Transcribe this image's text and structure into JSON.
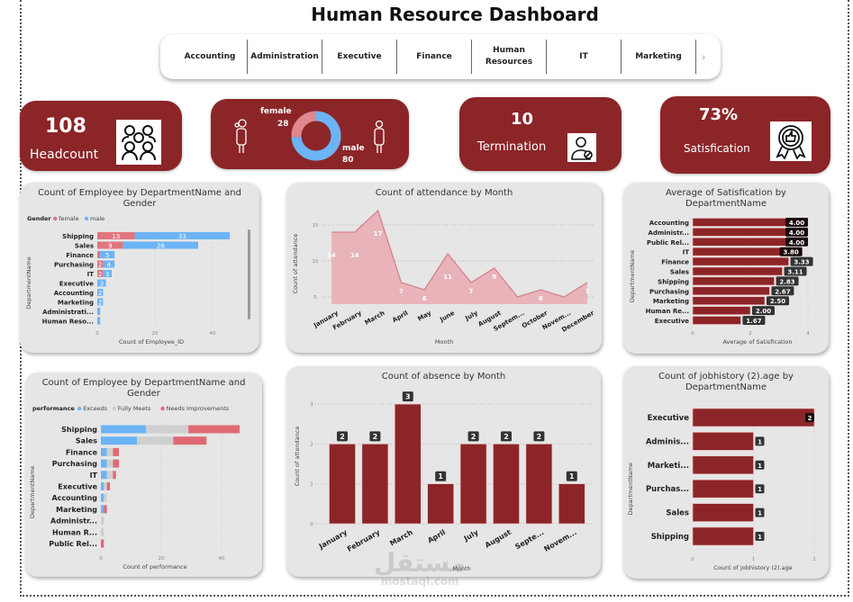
{
  "title": "Human Resource Dashboard",
  "slicer": {
    "items": [
      "Accounting",
      "Administration",
      "Executive",
      "Finance",
      "Human Resources",
      "IT",
      "Marketing"
    ],
    "next_icon": "chevron-right-icon"
  },
  "cards": {
    "headcount": {
      "value": "108",
      "label": "Headcount",
      "icon": "people-group-icon"
    },
    "gender": {
      "female_label": "female",
      "female_value": "28",
      "male_label": "male",
      "male_value": "80",
      "female_color": "#e0878f",
      "male_color": "#6cb4f6"
    },
    "termination": {
      "value": "10",
      "label": "Termination",
      "icon": "employee-remove-icon"
    },
    "satisfaction": {
      "value": "73%",
      "label": "Satisfication",
      "icon": "award-thumbs-up-icon"
    }
  },
  "colors": {
    "accent": "#8c2528",
    "female": "#e0767f",
    "male": "#6cb4f6",
    "exceeds": "#6cb4f6",
    "fully_meets": "#cfcfcf",
    "needs": "#e06a74",
    "label_bg": "#333333"
  },
  "watermark": {
    "arabic": "مستقل",
    "latin": "mostaql.com"
  },
  "chart_data": [
    {
      "id": "gender_dept",
      "type": "bar",
      "orientation": "horizontal",
      "stacked": true,
      "title": [
        "Count of Employee by DepartmentName and",
        "Gender"
      ],
      "legend_title": "Gender",
      "legend_position": "top-left",
      "categories": [
        "Shipping",
        "Sales",
        "Finance",
        "Purchasing",
        "IT",
        "Executive",
        "Accounting",
        "Marketing",
        "Administrati...",
        "Human Reso..."
      ],
      "series": [
        {
          "name": "female",
          "values": [
            13,
            9,
            1,
            2,
            2,
            0,
            0,
            0,
            0,
            0
          ]
        },
        {
          "name": "male",
          "values": [
            33,
            26,
            5,
            4,
            3,
            3,
            2,
            2,
            1,
            1
          ]
        }
      ],
      "xlabel": "Count of Employee_ID",
      "ylabel": "DepartmentName",
      "xticks": [
        0,
        20,
        40
      ],
      "xlim": [
        0,
        50
      ],
      "grid": true
    },
    {
      "id": "attendance",
      "type": "area",
      "title": "Count of attendance by Month",
      "categories": [
        "January",
        "February",
        "March",
        "April",
        "May",
        "June",
        "July",
        "August",
        "Septem...",
        "October",
        "Novem...",
        "December"
      ],
      "values": [
        14,
        14,
        17,
        7,
        6,
        11,
        7,
        9,
        5,
        6,
        5,
        7
      ],
      "data_labels": [
        "14",
        "14",
        "17",
        "7",
        "6",
        "11",
        "7",
        "9",
        "",
        "6",
        "",
        "7"
      ],
      "xlabel": "Month",
      "ylabel": "Count of attendance",
      "yticks": [
        5,
        10,
        15
      ],
      "ylim": [
        4,
        17
      ],
      "grid": true
    },
    {
      "id": "satisfaction",
      "type": "bar",
      "orientation": "horizontal",
      "title": [
        "Average of Satisfication by",
        "DepartmentName"
      ],
      "categories": [
        "Accounting",
        "Administr...",
        "Public Rel...",
        "IT",
        "Finance",
        "Sales",
        "Shipping",
        "Purchasing",
        "Marketing",
        "Human Re...",
        "Executive"
      ],
      "values": [
        4.0,
        4.0,
        4.0,
        3.8,
        3.33,
        3.11,
        2.83,
        2.67,
        2.5,
        2.0,
        1.67
      ],
      "data_labels": [
        "4.00",
        "4.00",
        "4.00",
        "3.80",
        "3.33",
        "3.11",
        "2.83",
        "2.67",
        "2.50",
        "2.00",
        "1.67"
      ],
      "xlabel": "Average of Satisfication",
      "ylabel": "DepartmentName",
      "xticks": [
        0,
        2,
        4
      ],
      "xlim": [
        0,
        4
      ]
    },
    {
      "id": "performance",
      "type": "bar",
      "orientation": "horizontal",
      "stacked": true,
      "title": [
        "Count of Employee by DepartmentName and",
        "Gender"
      ],
      "legend_title": "performance",
      "legend_position": "top-left",
      "categories": [
        "Shipping",
        "Sales",
        "Finance",
        "Purchasing",
        "IT",
        "Executive",
        "Accounting",
        "Marketing",
        "Administr...",
        "Human R...",
        "Public Rel..."
      ],
      "series": [
        {
          "name": "Exceeds",
          "values": [
            15,
            12,
            2,
            2,
            2,
            1,
            1,
            1,
            0,
            0,
            0
          ]
        },
        {
          "name": "Fully Meets",
          "values": [
            14,
            12,
            2,
            2,
            2,
            1,
            1,
            0,
            1,
            1,
            0
          ]
        },
        {
          "name": "Needs Improvements",
          "values": [
            17,
            11,
            2,
            2,
            1,
            1,
            0,
            1,
            0,
            0,
            1
          ]
        }
      ],
      "xlabel": "Count of performance",
      "ylabel": "DepartmentName",
      "xticks": [
        0,
        20,
        40
      ],
      "xlim": [
        0,
        50
      ]
    },
    {
      "id": "absence",
      "type": "bar",
      "title": "Count of absence by Month",
      "categories": [
        "January",
        "February",
        "March",
        "April",
        "July",
        "August",
        "Septe...",
        "Novem..."
      ],
      "values": [
        2,
        2,
        3,
        1,
        2,
        2,
        2,
        1
      ],
      "xlabel": "Month",
      "ylabel": "Count of attendance",
      "yticks": [
        0,
        1,
        2,
        3
      ],
      "ylim": [
        0,
        3
      ]
    },
    {
      "id": "jobhistory",
      "type": "bar",
      "orientation": "horizontal",
      "title": [
        "Count of jobhistory (2).age by",
        "DepartmentName"
      ],
      "categories": [
        "Executive",
        "Adminis...",
        "Marketi...",
        "Purchas...",
        "Sales",
        "Shipping"
      ],
      "values": [
        2,
        1,
        1,
        1,
        1,
        1
      ],
      "xlabel": "Count of jobhistory (2).age",
      "ylabel": "DepartmentName",
      "xticks": [
        0,
        1,
        2
      ],
      "xlim": [
        0,
        2
      ]
    }
  ]
}
